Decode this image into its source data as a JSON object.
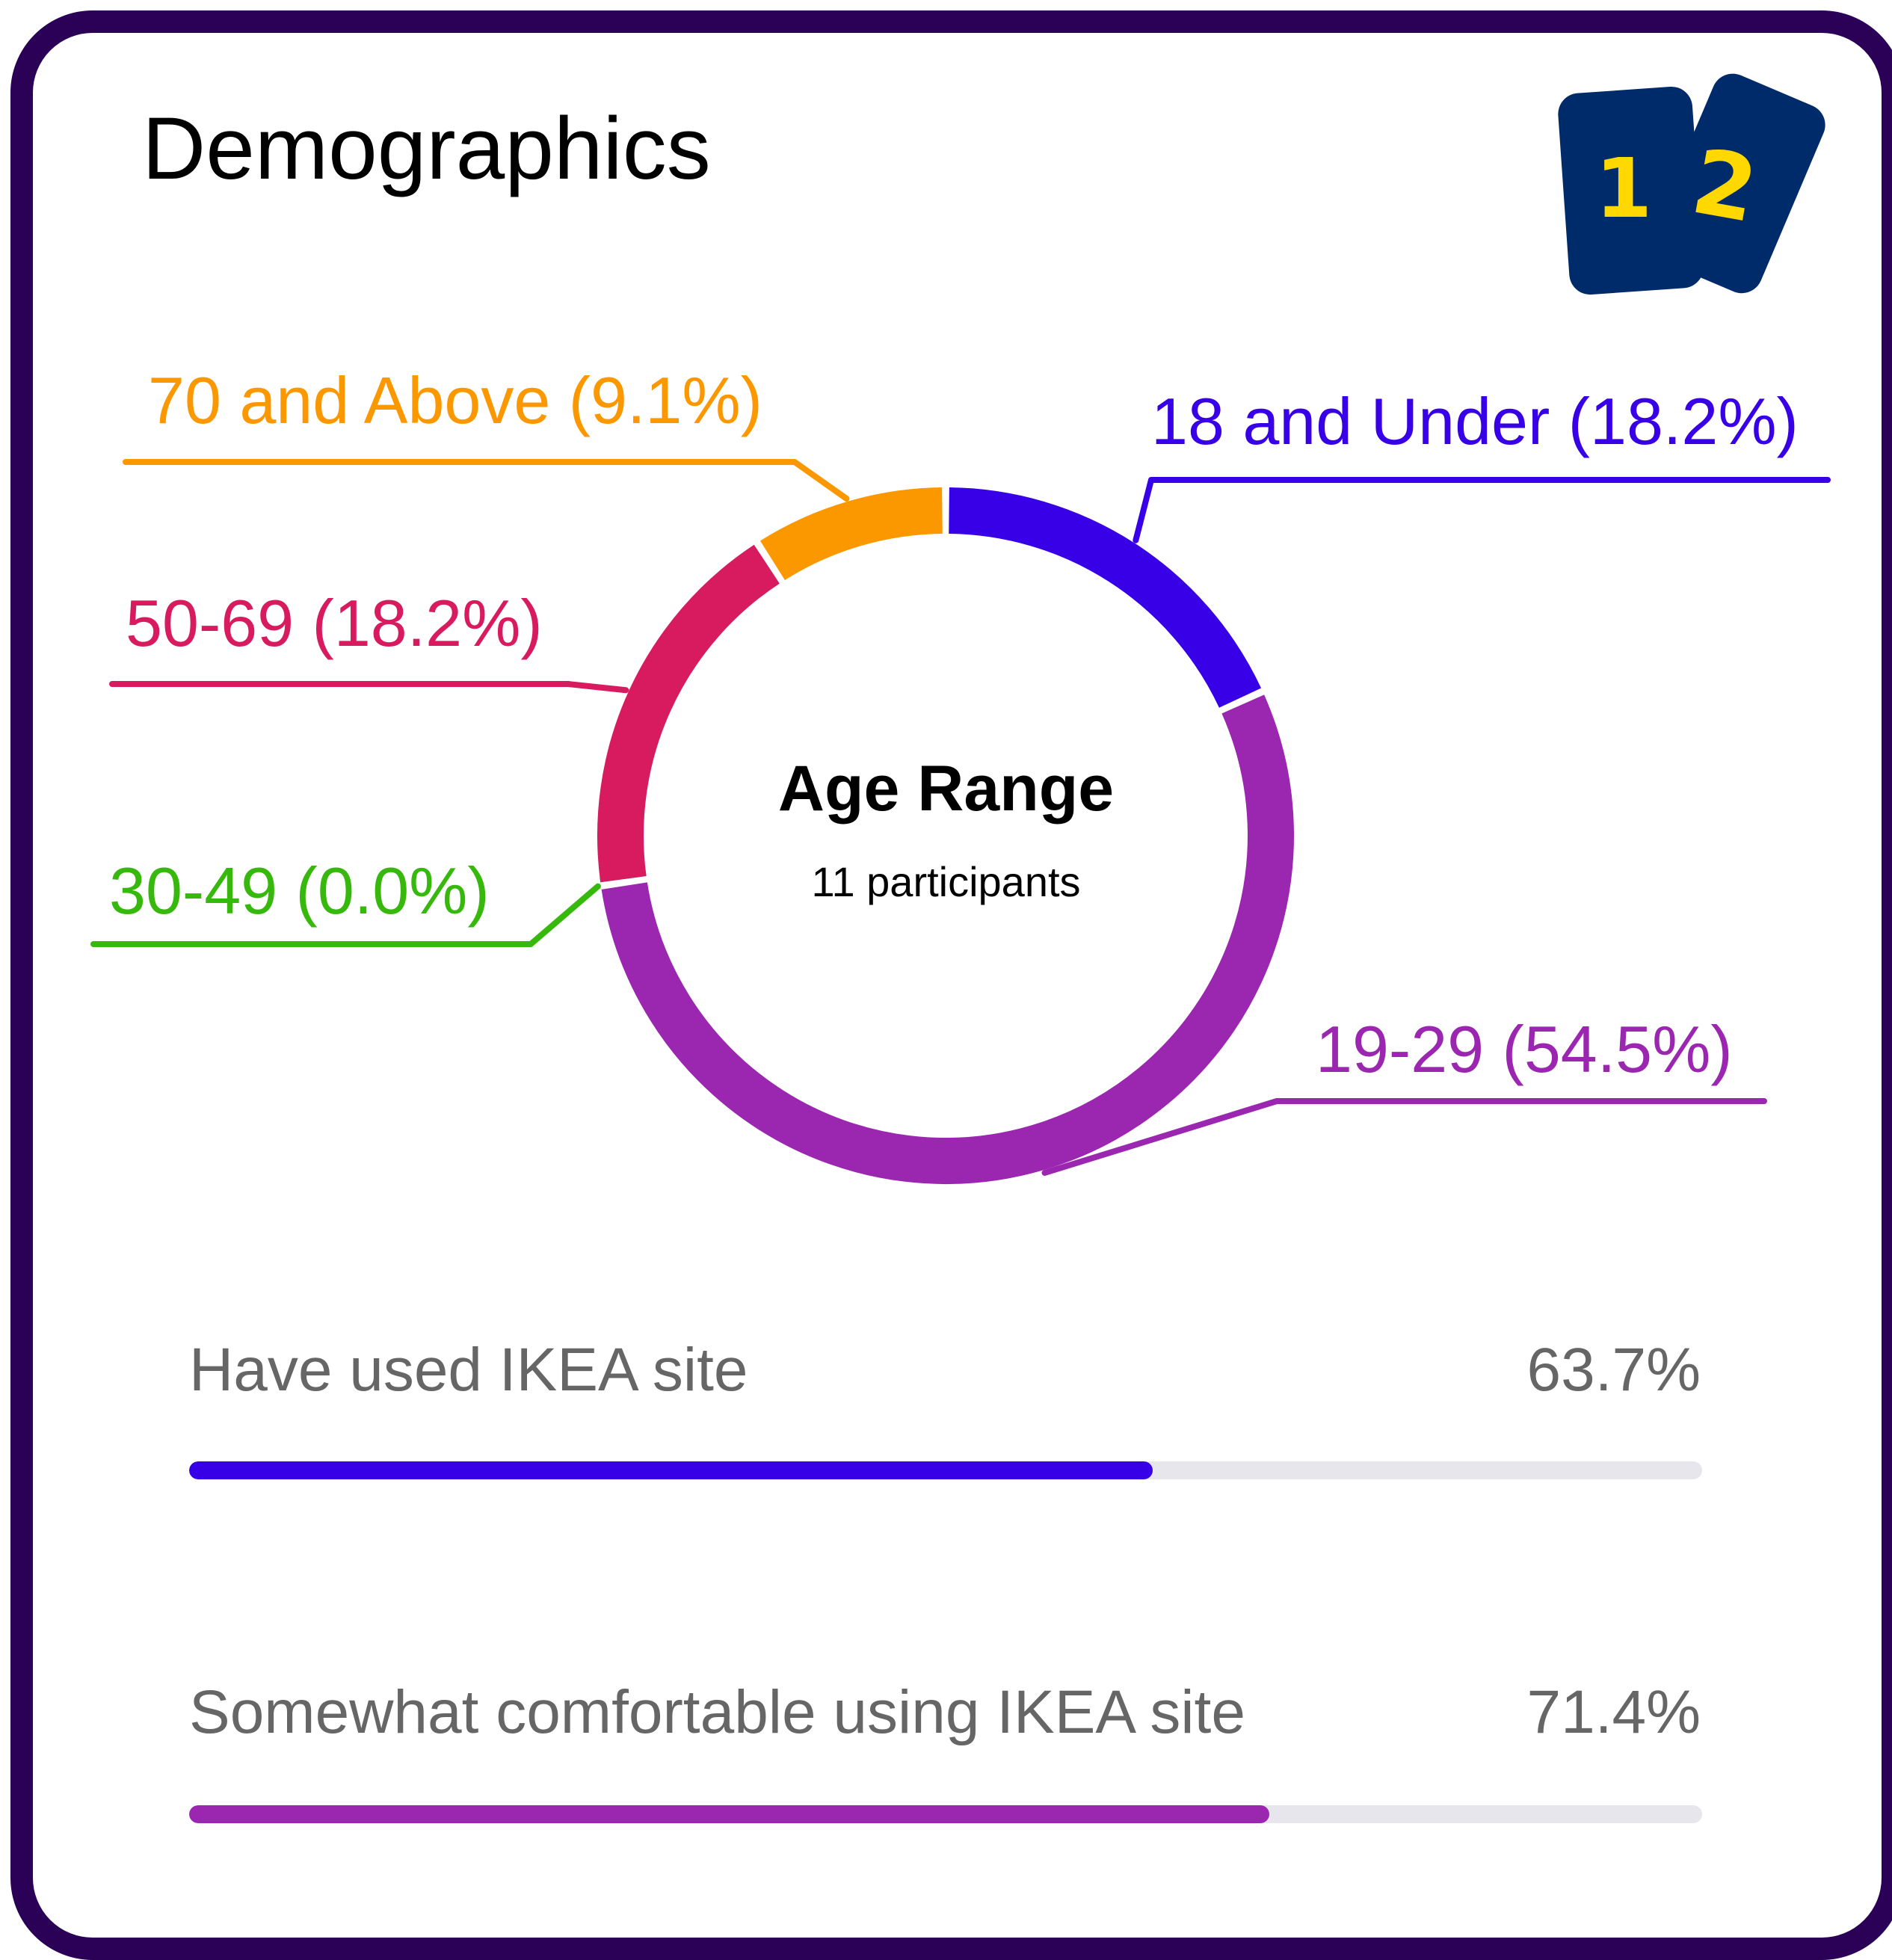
{
  "header": {
    "title": "Demographics",
    "logo_icon": "numbered-cards-logo-icon",
    "logo_digit_1": "1",
    "logo_digit_2": "2"
  },
  "chart_data": {
    "type": "pie",
    "title": "Age Range",
    "subtitle": "11 participants",
    "slices": [
      {
        "label": "18 and Under (18.2%)",
        "category": "18 and Under",
        "value": 18.2,
        "color": "#3700e6"
      },
      {
        "label": "19-29 (54.5%)",
        "category": "19-29",
        "value": 54.5,
        "color": "#9b27b0"
      },
      {
        "label": "30-49 (0.0%)",
        "category": "30-49",
        "value": 0.0,
        "color": "#37b80c"
      },
      {
        "label": "50-69 (18.2%)",
        "category": "50-69",
        "value": 18.2,
        "color": "#d81b5f"
      },
      {
        "label": "70 and Above (9.1%)",
        "category": "70 and Above",
        "value": 9.1,
        "color": "#fb9800"
      }
    ]
  },
  "stats": [
    {
      "label": "Have used IKEA site",
      "value_text": "63.7%",
      "fraction": 0.637,
      "color": "#3700e6"
    },
    {
      "label": "Somewhat comfortable using IKEA site",
      "value_text": "71.4%",
      "fraction": 0.714,
      "color": "#9b27b0"
    }
  ]
}
